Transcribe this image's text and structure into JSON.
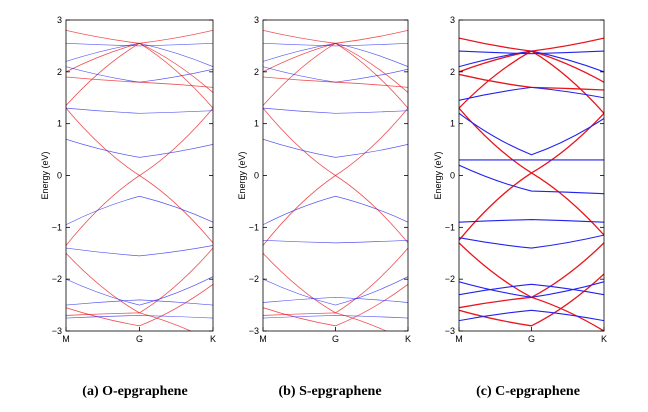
{
  "chart_data": [
    {
      "type": "line",
      "caption": "(a) O-epgraphene",
      "ylabel": "Energy (eV)",
      "ylim": [
        -3,
        3
      ],
      "yticks": [
        3,
        2,
        1,
        0,
        -1,
        -2,
        -3
      ],
      "xticks": [
        "M",
        "G",
        "K"
      ],
      "series": [
        {
          "color": "red",
          "values": [
            [
              2.8,
              2.55,
              2.8
            ],
            [
              1.35,
              2.55,
              1.3
            ],
            [
              1.3,
              0.0,
              1.3
            ],
            [
              -1.35,
              0.0,
              -1.3
            ],
            [
              -1.5,
              -2.65,
              -1.4
            ],
            [
              -2.7,
              -2.65,
              -3.2
            ],
            [
              2.0,
              2.55,
              1.6
            ],
            [
              1.9,
              1.8,
              1.7
            ],
            [
              -2.55,
              -2.9,
              -2.1
            ]
          ]
        },
        {
          "color": "blue",
          "values": [
            [
              2.55,
              2.5,
              2.55
            ],
            [
              2.2,
              2.55,
              2.1
            ],
            [
              1.3,
              1.2,
              1.25
            ],
            [
              0.7,
              0.35,
              0.6
            ],
            [
              -0.95,
              -0.4,
              -0.9
            ],
            [
              -1.4,
              -1.55,
              -1.35
            ],
            [
              -2.0,
              -2.5,
              -1.95
            ],
            [
              -2.5,
              -2.4,
              -2.5
            ],
            [
              -2.75,
              -2.7,
              -2.75
            ],
            [
              2.1,
              1.8,
              2.05
            ]
          ]
        }
      ]
    },
    {
      "type": "line",
      "caption": "(b) S-epgraphene",
      "ylabel": "Energy (eV)",
      "ylim": [
        -3,
        3
      ],
      "yticks": [
        3,
        2,
        1,
        0,
        -1,
        -2,
        -3
      ],
      "xticks": [
        "M",
        "G",
        "K"
      ],
      "series": [
        {
          "color": "red",
          "values": [
            [
              2.8,
              2.55,
              2.8
            ],
            [
              1.35,
              2.55,
              1.3
            ],
            [
              1.3,
              0.0,
              1.3
            ],
            [
              -1.35,
              0.0,
              -1.3
            ],
            [
              -1.5,
              -2.65,
              -1.4
            ],
            [
              -2.7,
              -2.65,
              -3.2
            ],
            [
              2.0,
              2.55,
              1.6
            ],
            [
              1.9,
              1.8,
              1.7
            ],
            [
              -2.55,
              -2.9,
              -2.1
            ]
          ]
        },
        {
          "color": "blue",
          "values": [
            [
              2.55,
              2.5,
              2.55
            ],
            [
              2.2,
              2.55,
              2.1
            ],
            [
              1.3,
              1.2,
              1.25
            ],
            [
              0.7,
              0.35,
              0.6
            ],
            [
              -0.95,
              -0.4,
              -0.9
            ],
            [
              -1.25,
              -1.3,
              -1.25
            ],
            [
              -2.0,
              -2.5,
              -1.95
            ],
            [
              -2.45,
              -2.35,
              -2.45
            ],
            [
              -2.75,
              -2.7,
              -2.75
            ],
            [
              2.1,
              1.8,
              2.05
            ]
          ]
        }
      ]
    },
    {
      "type": "line",
      "caption": "(c) C-epgraphene",
      "ylabel": "Energy (eV)",
      "ylim": [
        -3,
        3
      ],
      "yticks": [
        3,
        2,
        1,
        0,
        -1,
        -2,
        -3
      ],
      "xticks": [
        "M",
        "G",
        "K"
      ],
      "series": [
        {
          "color": "red",
          "values": [
            [
              2.65,
              2.4,
              2.65
            ],
            [
              1.3,
              2.4,
              1.2
            ],
            [
              1.3,
              0.05,
              1.2
            ],
            [
              -1.25,
              0.05,
              -1.15
            ],
            [
              -1.3,
              -2.35,
              -1.3
            ],
            [
              -2.55,
              -2.35,
              -3.0
            ],
            [
              2.0,
              2.4,
              1.8
            ],
            [
              -2.6,
              -2.9,
              -1.9
            ],
            [
              1.95,
              1.7,
              1.65
            ]
          ]
        },
        {
          "color": "blue",
          "values": [
            [
              2.4,
              2.35,
              2.4
            ],
            [
              2.1,
              2.4,
              2.0
            ],
            [
              1.45,
              1.7,
              1.5
            ],
            [
              1.2,
              0.4,
              1.1
            ],
            [
              0.3,
              0.3,
              0.3
            ],
            [
              0.2,
              -0.3,
              -0.35
            ],
            [
              -0.9,
              -0.85,
              -0.9
            ],
            [
              -1.2,
              -1.4,
              -1.15
            ],
            [
              -2.05,
              -2.35,
              -2.05
            ],
            [
              -2.3,
              -2.1,
              -2.3
            ],
            [
              -2.8,
              -2.6,
              -2.8
            ]
          ]
        }
      ]
    }
  ]
}
